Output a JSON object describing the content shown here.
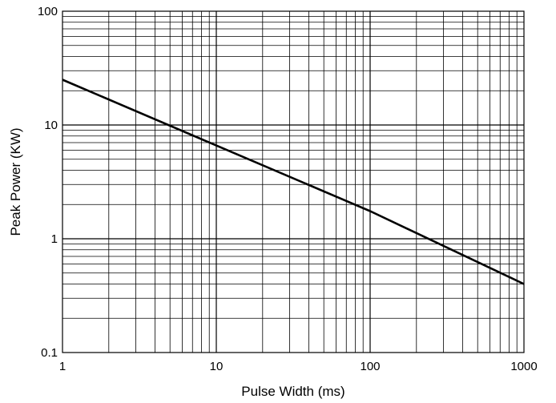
{
  "chart_data": {
    "type": "line",
    "title": "",
    "xlabel": "Pulse Width (ms)",
    "ylabel": "Peak  Power (KW)",
    "x_scale": "log",
    "y_scale": "log",
    "xlim": [
      1,
      1000
    ],
    "ylim": [
      0.1,
      100
    ],
    "x_ticks": [
      {
        "value": 1,
        "label": "1"
      },
      {
        "value": 10,
        "label": "10"
      },
      {
        "value": 100,
        "label": "100"
      },
      {
        "value": 1000,
        "label": "1000"
      }
    ],
    "y_ticks": [
      {
        "value": 100,
        "label": "100"
      },
      {
        "value": 10,
        "label": "10"
      },
      {
        "value": 1,
        "label": "1"
      },
      {
        "value": 0.1,
        "label": "0.1"
      }
    ],
    "grid": true,
    "legend": "none",
    "series": [
      {
        "x": [
          1,
          10,
          100,
          1000
        ],
        "y": [
          25,
          6.6,
          1.75,
          0.4
        ],
        "color": "#000000"
      }
    ]
  }
}
